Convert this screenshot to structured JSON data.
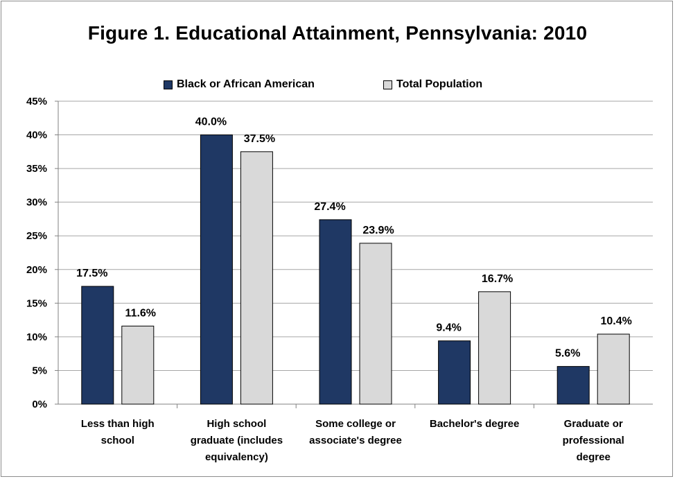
{
  "colors": {
    "series_black": "#1f3864",
    "series_total": "#d9d9d9",
    "grid": "#a6a6a6",
    "axis": "#808080",
    "bar_border": "#000000"
  },
  "chart_data": {
    "type": "bar",
    "title": "Figure 1. Educational Attainment, Pennsylvania: 2010",
    "categories": [
      [
        "Less than high",
        "school"
      ],
      [
        "High school",
        "graduate (includes",
        "equivalency)"
      ],
      [
        "Some college or",
        "associate's degree"
      ],
      [
        "Bachelor's degree"
      ],
      [
        "Graduate or",
        "professional",
        "degree"
      ]
    ],
    "series": [
      {
        "name": "Black or African American",
        "values": [
          17.5,
          40.0,
          27.4,
          9.4,
          5.6
        ],
        "labels": [
          "17.5%",
          "40.0%",
          "27.4%",
          "9.4%",
          "5.6%"
        ]
      },
      {
        "name": "Total Population",
        "values": [
          11.6,
          37.5,
          23.9,
          16.7,
          10.4
        ],
        "labels": [
          "11.6%",
          "37.5%",
          "23.9%",
          "16.7%",
          "10.4%"
        ]
      }
    ],
    "ylim": [
      0,
      45
    ],
    "yticks": [
      "0%",
      "5%",
      "10%",
      "15%",
      "20%",
      "25%",
      "30%",
      "35%",
      "40%",
      "45%"
    ],
    "grid": true,
    "legend_position": "top"
  }
}
